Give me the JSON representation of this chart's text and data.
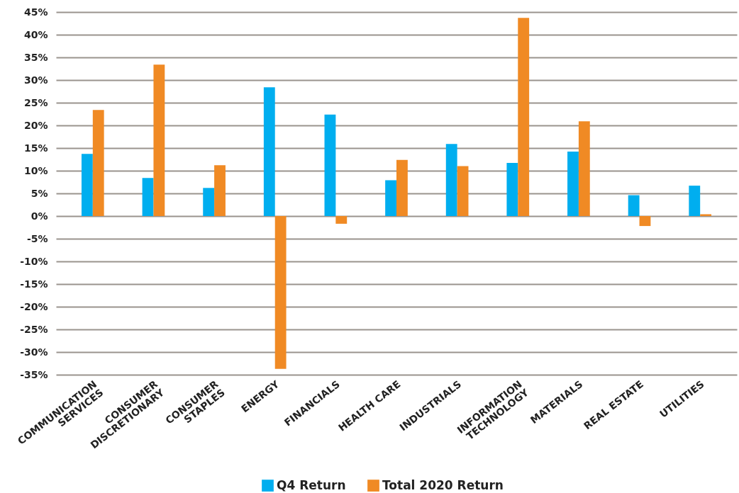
{
  "chart_data": {
    "type": "bar",
    "categories": [
      "COMMUNICATION SERVICES",
      "CONSUMER DISCRETIONARY",
      "CONSUMER STAPLES",
      "ENERGY",
      "FINANCIALS",
      "HEALTH CARE",
      "INDUSTRIALS",
      "INFORMATION TECHNOLOGY",
      "MATERIALS",
      "REAL ESTATE",
      "UTILITIES"
    ],
    "series": [
      {
        "name": "Q4 Return",
        "color": "#00aeef",
        "values": [
          13.7,
          8.4,
          6.2,
          28.4,
          22.4,
          7.9,
          15.9,
          11.7,
          14.2,
          4.6,
          6.7
        ]
      },
      {
        "name": "Total 2020 Return",
        "color": "#f08a24",
        "values": [
          23.4,
          33.4,
          11.2,
          -33.7,
          -1.7,
          12.4,
          11.0,
          43.7,
          20.9,
          -2.2,
          0.4
        ]
      }
    ],
    "ylim": [
      -35,
      45
    ],
    "yticks": [
      {
        "value": -35,
        "label": "-35%"
      },
      {
        "value": -30,
        "label": "-30%"
      },
      {
        "value": -25,
        "label": "-25%"
      },
      {
        "value": -20,
        "label": "-20%"
      },
      {
        "value": -15,
        "label": "-15%"
      },
      {
        "value": -10,
        "label": "-10%"
      },
      {
        "value": -5,
        "label": "-5%"
      },
      {
        "value": 0,
        "label": "0%"
      },
      {
        "value": 5,
        "label": "5%"
      },
      {
        "value": 10,
        "label": "10%"
      },
      {
        "value": 15,
        "label": "15%"
      },
      {
        "value": 20,
        "label": "20%"
      },
      {
        "value": 25,
        "label": "25%"
      },
      {
        "value": 30,
        "label": "30%"
      },
      {
        "value": 35,
        "label": "35%"
      },
      {
        "value": 40,
        "label": "40%"
      },
      {
        "value": 45,
        "label": "45%"
      }
    ],
    "grid": "y",
    "legend": "bottom"
  }
}
